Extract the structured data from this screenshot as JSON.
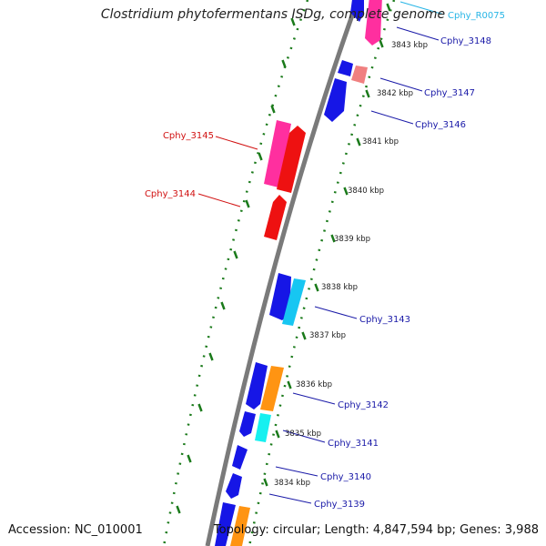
{
  "title": "Clostridium phytofermentans ISDg, complete genome",
  "footer": {
    "accession": "Accession: NC_010001",
    "topology": "Topology: circular; Length: 4,847,594 bp; Genes: 3,988"
  },
  "colors": {
    "backbone": "#7a7a7a",
    "ruler": "#1a7a1a",
    "blue": "#1616e6",
    "red": "#ee1111",
    "pink": "#ff2f9f",
    "lightred": "#f08080",
    "cyan": "#17c6f2",
    "aqua": "#16f0f0",
    "orange": "#ff9412",
    "label_blue": "#1a1aa8",
    "label_red": "#d11111",
    "label_cyan": "#27b5e6"
  },
  "kbp_labels": [
    "3843 kbp",
    "3842 kbp",
    "3841 kbp",
    "3840 kbp",
    "3839 kbp",
    "3838 kbp",
    "3837 kbp",
    "3836 kbp",
    "3835 kbp",
    "3834 kbp"
  ],
  "gene_labels": [
    {
      "text": "Cphy_R0075",
      "color": "label_cyan"
    },
    {
      "text": "Cphy_3148",
      "color": "label_blue"
    },
    {
      "text": "Cphy_3147",
      "color": "label_blue"
    },
    {
      "text": "Cphy_3146",
      "color": "label_blue"
    },
    {
      "text": "Cphy_3145",
      "color": "label_red"
    },
    {
      "text": "Cphy_3144",
      "color": "label_red"
    },
    {
      "text": "Cphy_3143",
      "color": "label_blue"
    },
    {
      "text": "Cphy_3142",
      "color": "label_blue"
    },
    {
      "text": "Cphy_3141",
      "color": "label_blue"
    },
    {
      "text": "Cphy_3140",
      "color": "label_blue"
    },
    {
      "text": "Cphy_3139",
      "color": "label_blue"
    }
  ]
}
